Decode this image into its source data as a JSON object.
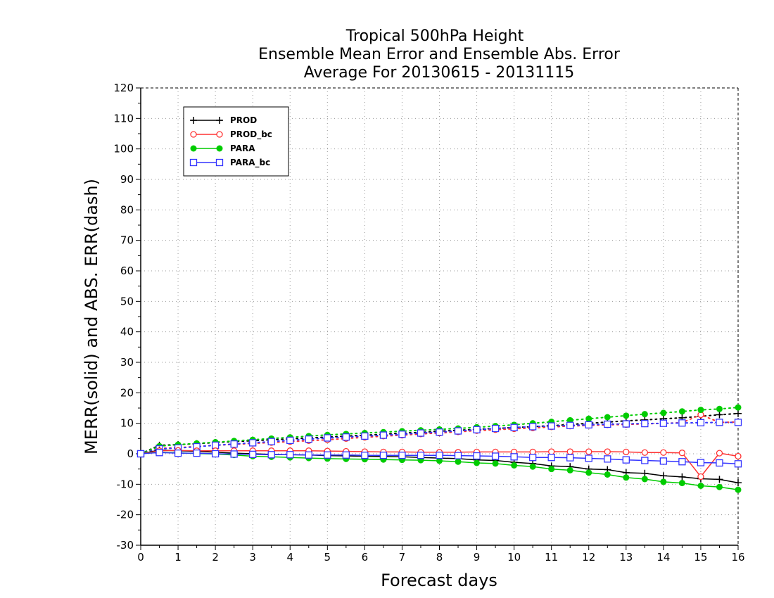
{
  "chart_data": {
    "type": "line",
    "title_lines": [
      "Tropical 500hPa Height",
      "Ensemble Mean Error and Ensemble Abs. Error",
      "Average For 20130615 - 20131115"
    ],
    "xlabel": "Forecast days",
    "ylabel": "MERR(solid) and ABS. ERR(dash)",
    "xlim": [
      0,
      16
    ],
    "ylim": [
      -30,
      120
    ],
    "xticks": [
      0,
      1,
      2,
      3,
      4,
      5,
      6,
      7,
      8,
      9,
      10,
      11,
      12,
      13,
      14,
      15,
      16
    ],
    "yticks": [
      -30,
      -20,
      -10,
      0,
      10,
      20,
      30,
      40,
      50,
      60,
      70,
      80,
      90,
      100,
      110,
      120
    ],
    "grid": true,
    "legend_position": "top-left",
    "x": [
      0,
      0.5,
      1,
      1.5,
      2,
      2.5,
      3,
      3.5,
      4,
      4.5,
      5,
      5.5,
      6,
      6.5,
      7,
      7.5,
      8,
      8.5,
      9,
      9.5,
      10,
      10.5,
      11,
      11.5,
      12,
      12.5,
      13,
      13.5,
      14,
      14.5,
      15,
      15.5,
      16
    ],
    "series": [
      {
        "name": "PROD",
        "color": "#000000",
        "marker": "plus",
        "merr": [
          0,
          1.2,
          1.0,
          0.8,
          0.5,
          0.2,
          0,
          -0.2,
          -0.3,
          -0.4,
          -0.6,
          -0.7,
          -0.8,
          -0.9,
          -1.0,
          -1.2,
          -1.4,
          -1.6,
          -2.0,
          -2.2,
          -2.8,
          -3.2,
          -4.0,
          -4.2,
          -5.0,
          -5.2,
          -6.2,
          -6.4,
          -7.2,
          -7.6,
          -8.2,
          -8.4,
          -9.5
        ],
        "abserr": [
          0,
          2.8,
          3.0,
          3.3,
          3.7,
          4.0,
          4.3,
          4.6,
          4.9,
          5.2,
          5.5,
          5.8,
          6.1,
          6.4,
          6.8,
          7.0,
          7.4,
          7.7,
          8.0,
          8.3,
          8.6,
          8.9,
          9.2,
          9.6,
          10.0,
          10.4,
          10.8,
          11.1,
          11.5,
          11.8,
          12.3,
          12.8,
          13.2
        ]
      },
      {
        "name": "PROD_bc",
        "color": "#ff3333",
        "marker": "open-circle",
        "merr": [
          0,
          1.0,
          1.1,
          1.0,
          1.0,
          1.0,
          1.0,
          1.0,
          1.0,
          1.0,
          0.9,
          0.8,
          0.7,
          0.6,
          0.6,
          0.5,
          0.5,
          0.5,
          0.6,
          0.6,
          0.6,
          0.6,
          0.7,
          0.7,
          0.7,
          0.7,
          0.6,
          0.4,
          0.4,
          0.3,
          -7.5,
          0.2,
          -0.8
        ],
        "abserr": [
          0,
          1.8,
          2.0,
          2.4,
          2.8,
          3.1,
          3.4,
          3.7,
          4.0,
          4.3,
          4.6,
          5.0,
          5.4,
          5.8,
          6.1,
          6.5,
          6.8,
          7.2,
          7.6,
          7.9,
          8.2,
          8.5,
          8.8,
          9.1,
          9.3,
          9.5,
          9.6,
          9.8,
          10.0,
          10.2,
          12.8,
          10.3,
          10.4
        ]
      },
      {
        "name": "PARA",
        "color": "#00cc00",
        "marker": "filled-circle",
        "merr": [
          0,
          0.5,
          0.3,
          0.1,
          -0.1,
          -0.4,
          -0.8,
          -1.0,
          -1.2,
          -1.4,
          -1.6,
          -1.7,
          -1.8,
          -1.9,
          -2.0,
          -2.1,
          -2.3,
          -2.6,
          -3.0,
          -3.2,
          -3.8,
          -4.2,
          -5.0,
          -5.4,
          -6.2,
          -6.8,
          -7.8,
          -8.3,
          -9.2,
          -9.6,
          -10.5,
          -10.9,
          -11.8
        ],
        "abserr": [
          0,
          2.5,
          3.0,
          3.4,
          3.8,
          4.2,
          4.6,
          5.0,
          5.4,
          5.8,
          6.2,
          6.5,
          6.8,
          7.1,
          7.4,
          7.7,
          8.0,
          8.3,
          8.7,
          9.1,
          9.5,
          10.0,
          10.5,
          11.0,
          11.5,
          12.0,
          12.5,
          13.0,
          13.4,
          13.9,
          14.4,
          14.7,
          15.2
        ]
      },
      {
        "name": "PARA_bc",
        "color": "#3333ff",
        "marker": "open-square",
        "merr": [
          0,
          0.4,
          0.2,
          0.2,
          0,
          -0.1,
          -0.2,
          -0.3,
          -0.3,
          -0.4,
          -0.4,
          -0.4,
          -0.5,
          -0.5,
          -0.5,
          -0.5,
          -0.5,
          -0.6,
          -0.7,
          -0.8,
          -1.0,
          -1.2,
          -1.2,
          -1.3,
          -1.5,
          -1.7,
          -2.0,
          -2.2,
          -2.4,
          -2.6,
          -2.9,
          -3.0,
          -3.3
        ],
        "abserr": [
          0,
          1.6,
          1.9,
          2.3,
          2.8,
          3.2,
          3.6,
          4.0,
          4.4,
          4.8,
          5.2,
          5.5,
          5.8,
          6.1,
          6.4,
          6.8,
          7.1,
          7.5,
          7.9,
          8.3,
          8.6,
          8.9,
          9.1,
          9.3,
          9.5,
          9.7,
          9.8,
          9.9,
          10.0,
          10.1,
          10.2,
          10.3,
          10.3
        ]
      }
    ]
  }
}
